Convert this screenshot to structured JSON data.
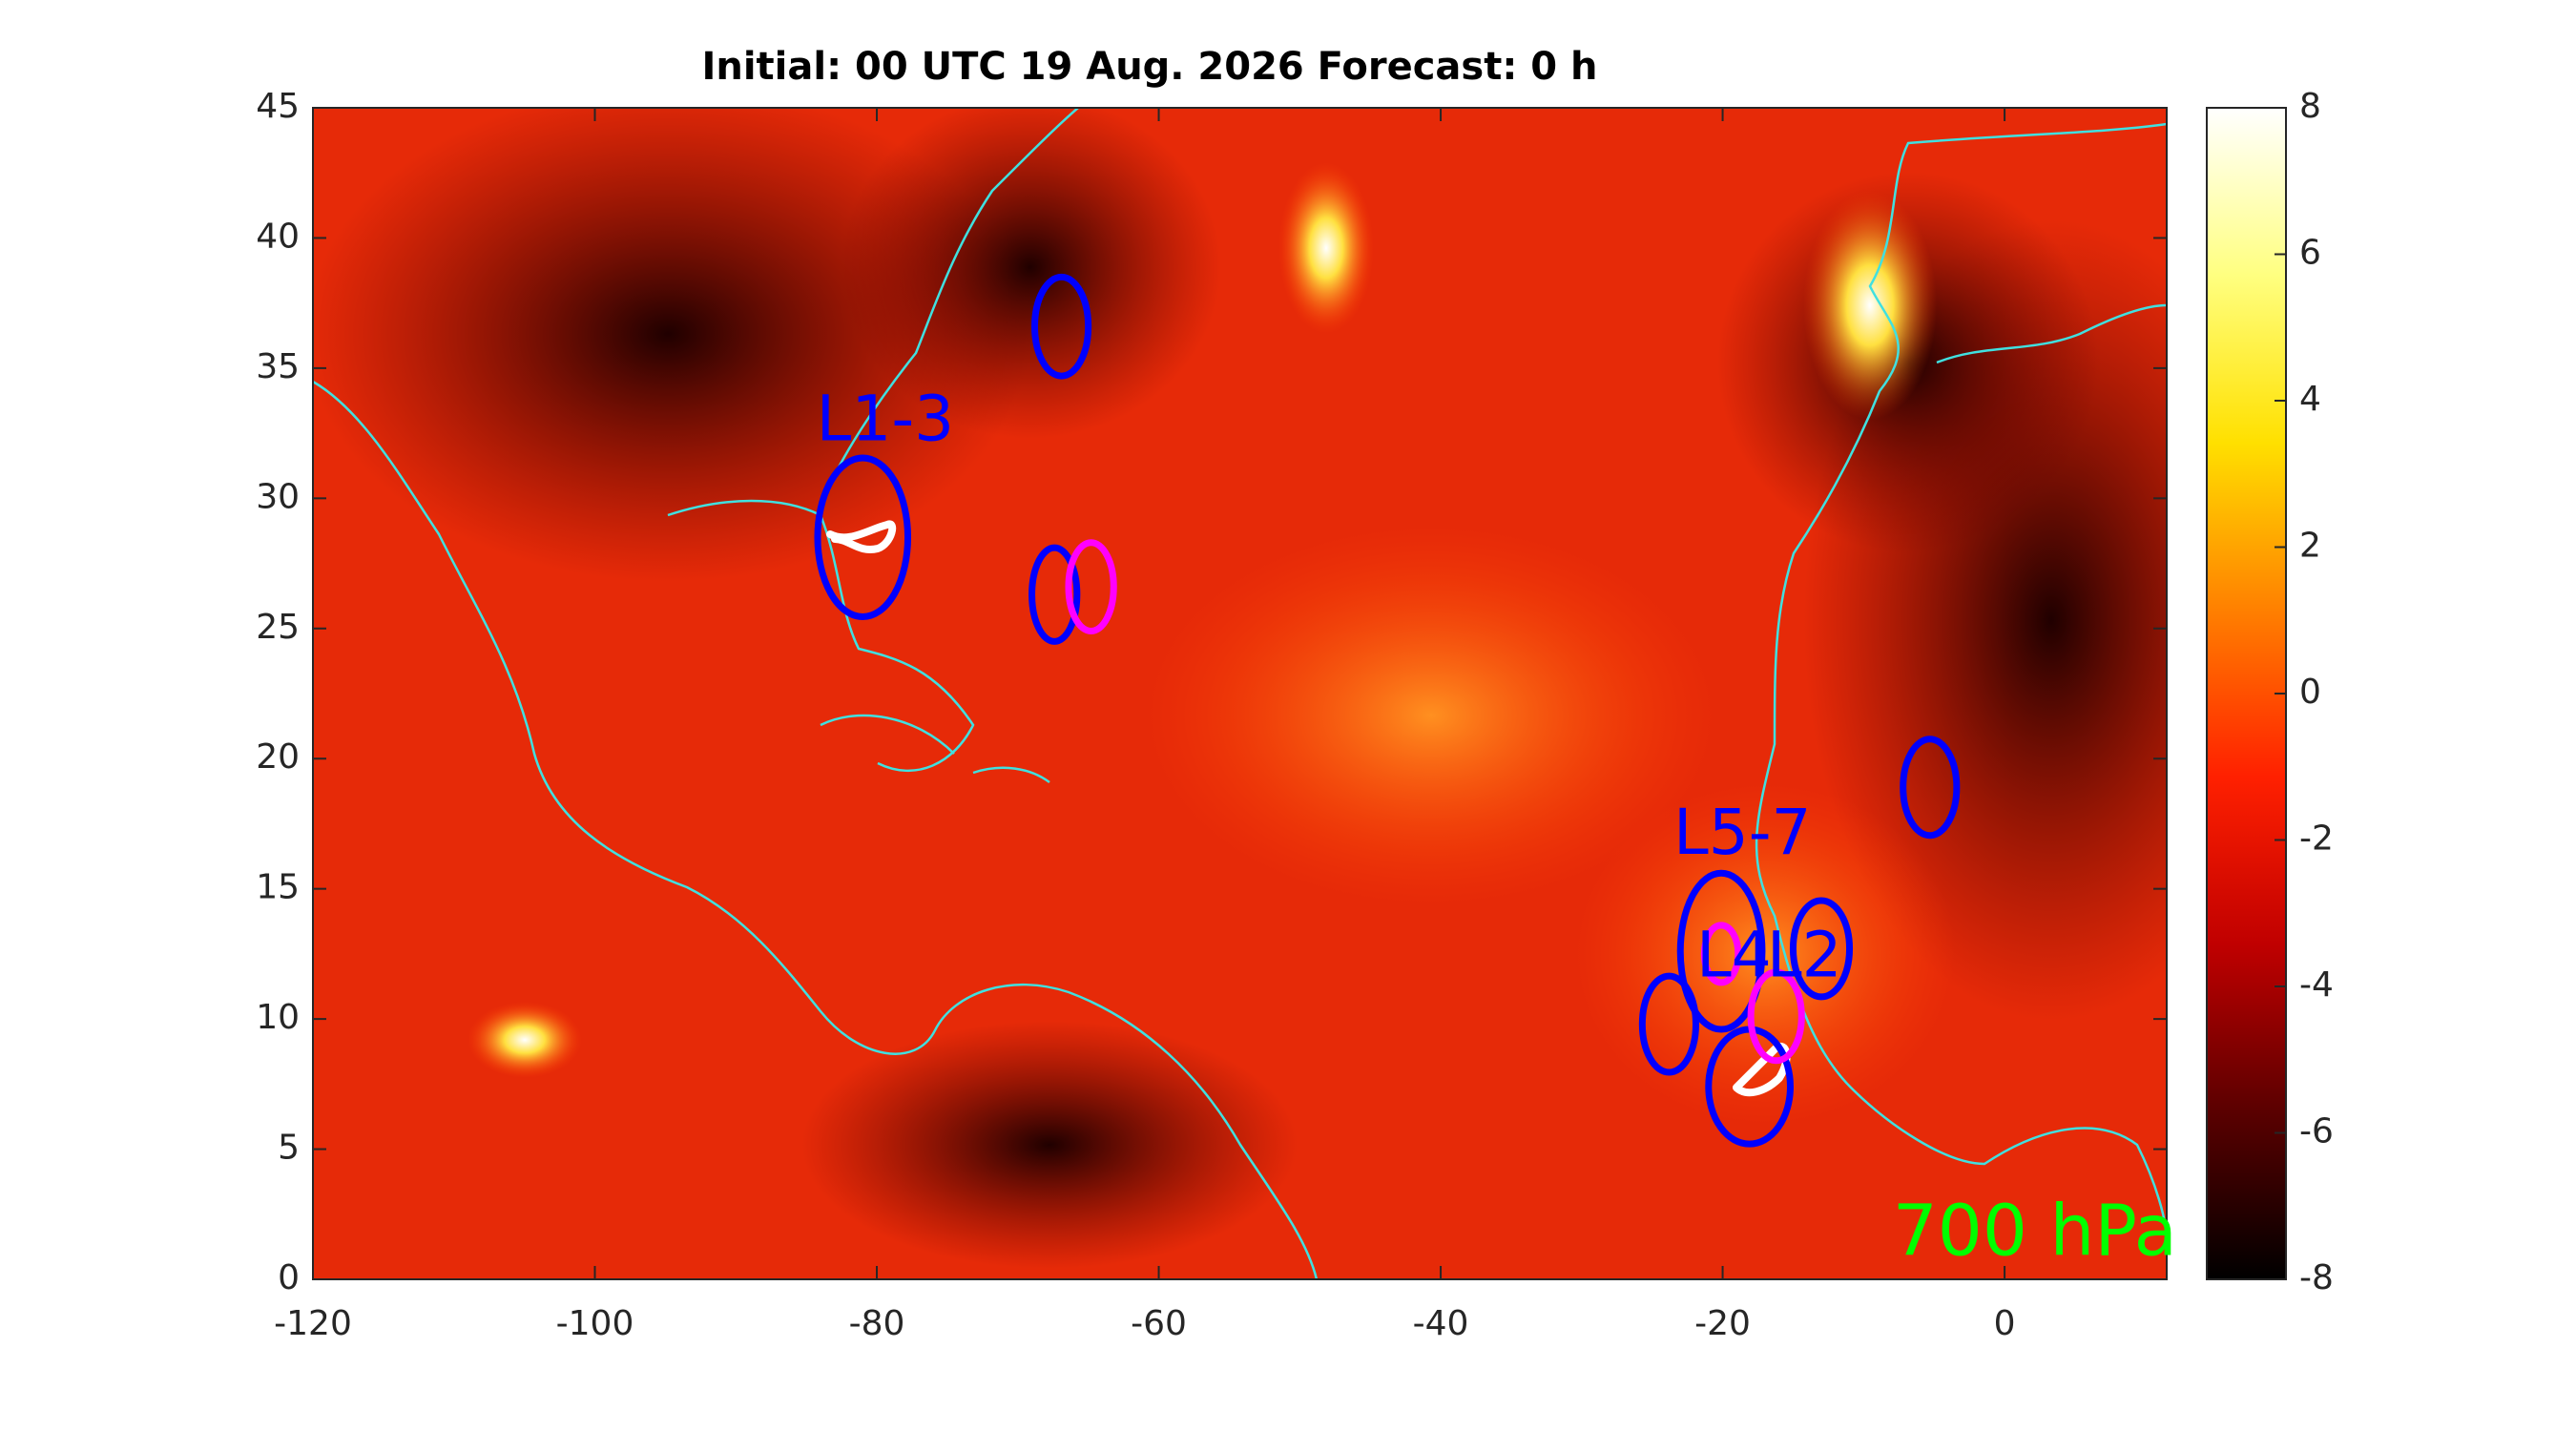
{
  "chart_data": {
    "type": "map",
    "title": "Initial: 00 UTC 19 Aug. 2026 Forecast: 0 h",
    "annotation": "700 hPa",
    "annotation_color": "#00ff00",
    "xlim": [
      -120,
      11.5
    ],
    "xticks": [
      -120,
      -100,
      -80,
      -60,
      -40,
      -20,
      0
    ],
    "ylim": [
      0,
      45
    ],
    "yticks": [
      0,
      5,
      10,
      15,
      20,
      25,
      30,
      35,
      40,
      45
    ],
    "clim": [
      -8,
      8
    ],
    "cticks": [
      -8,
      -6,
      -4,
      -2,
      0,
      2,
      4,
      6,
      8
    ],
    "colormap": [
      "#000000",
      "#5a0000",
      "#c00000",
      "#ff2000",
      "#ff8000",
      "#ffe000",
      "#ffff80",
      "#ffffff"
    ],
    "ellipses": [
      {
        "lon": -66.9,
        "lat": 36.6,
        "rx": 1.9,
        "ry": 1.9,
        "color": "#0000ff"
      },
      {
        "lon": -81,
        "lat": 28.5,
        "rx": 3.2,
        "ry": 3.05,
        "color": "#0000ff"
      },
      {
        "lon": -67.4,
        "lat": 26.3,
        "rx": 1.6,
        "ry": 1.8,
        "color": "#0000ff"
      },
      {
        "lon": -64.8,
        "lat": 26.6,
        "rx": 1.6,
        "ry": 1.7,
        "color": "#ff00ff"
      },
      {
        "lon": -5.3,
        "lat": 18.9,
        "rx": 1.9,
        "ry": 1.85,
        "color": "#0000ff"
      },
      {
        "lon": -20.1,
        "lat": 12.6,
        "rx": 2.9,
        "ry": 3.0,
        "color": "#0000ff"
      },
      {
        "lon": -20.1,
        "lat": 12.5,
        "rx": 1.2,
        "ry": 1.1,
        "color": "#ff00ff"
      },
      {
        "lon": -13,
        "lat": 12.7,
        "rx": 2.0,
        "ry": 1.85,
        "color": "#0000ff"
      },
      {
        "lon": -23.8,
        "lat": 9.8,
        "rx": 1.9,
        "ry": 1.85,
        "color": "#0000ff"
      },
      {
        "lon": -18.1,
        "lat": 7.4,
        "rx": 2.9,
        "ry": 2.2,
        "color": "#0000ff"
      },
      {
        "lon": -16.2,
        "lat": 10.1,
        "rx": 1.8,
        "ry": 1.7,
        "color": "#ff00ff"
      }
    ],
    "labels": [
      {
        "text": "L1-3",
        "lon": -79.4,
        "lat": 32.9,
        "color": "#0000ff"
      },
      {
        "text": "L5-7",
        "lon": -18.6,
        "lat": 17,
        "color": "#0000ff"
      },
      {
        "text": "L4",
        "lon": -19.2,
        "lat": 12.3,
        "color": "#0000ff"
      },
      {
        "text": "L2",
        "lon": -14.2,
        "lat": 12.3,
        "color": "#0000ff"
      }
    ]
  }
}
